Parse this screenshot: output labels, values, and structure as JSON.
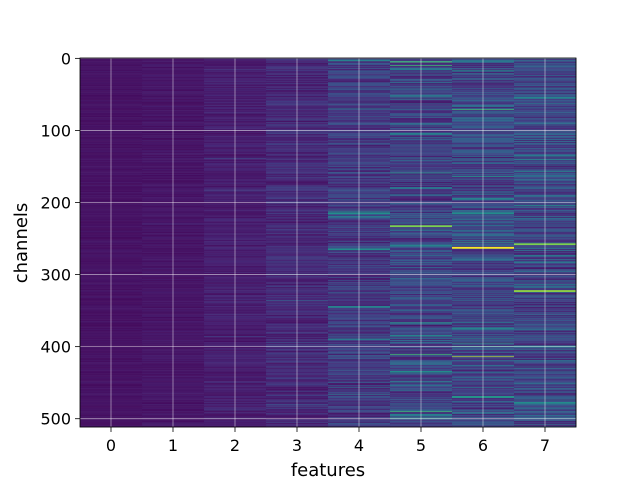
{
  "chart_data": {
    "type": "heatmap",
    "title": "",
    "xlabel": "features",
    "ylabel": "channels",
    "x_ticks": [
      0,
      1,
      2,
      3,
      4,
      5,
      6,
      7
    ],
    "y_ticks": [
      0,
      100,
      200,
      300,
      400,
      500
    ],
    "xlim": [
      -0.5,
      7.5
    ],
    "ylim": [
      511.5,
      -0.5
    ],
    "y_axis_inverted": true,
    "grid": true,
    "colormap": "viridis",
    "columns": 8,
    "rows": 512,
    "column_mean_intensity": [
      0.06,
      0.07,
      0.1,
      0.14,
      0.2,
      0.24,
      0.26,
      0.25
    ],
    "column_variability": [
      0.03,
      0.04,
      0.07,
      0.11,
      0.17,
      0.22,
      0.24,
      0.23
    ],
    "highlights": [
      {
        "feature": 4,
        "channel": 3,
        "value": 0.55
      },
      {
        "feature": 4,
        "channel": 215,
        "value": 0.62
      },
      {
        "feature": 4,
        "channel": 220,
        "value": 0.5
      },
      {
        "feature": 4,
        "channel": 265,
        "value": 0.6
      },
      {
        "feature": 4,
        "channel": 345,
        "value": 0.55
      },
      {
        "feature": 4,
        "channel": 390,
        "value": 0.5
      },
      {
        "feature": 5,
        "channel": 15,
        "value": 0.5
      },
      {
        "feature": 5,
        "channel": 105,
        "value": 0.55
      },
      {
        "feature": 5,
        "channel": 180,
        "value": 0.5
      },
      {
        "feature": 5,
        "channel": 233,
        "value": 0.85
      },
      {
        "feature": 5,
        "channel": 260,
        "value": 0.55
      },
      {
        "feature": 5,
        "channel": 385,
        "value": 0.55
      },
      {
        "feature": 5,
        "channel": 435,
        "value": 0.6
      },
      {
        "feature": 5,
        "channel": 495,
        "value": 0.55
      },
      {
        "feature": 6,
        "channel": 4,
        "value": 0.5
      },
      {
        "feature": 6,
        "channel": 195,
        "value": 0.55
      },
      {
        "feature": 6,
        "channel": 215,
        "value": 0.6
      },
      {
        "feature": 6,
        "channel": 263,
        "value": 1.0
      },
      {
        "feature": 6,
        "channel": 375,
        "value": 0.55
      },
      {
        "feature": 6,
        "channel": 470,
        "value": 0.65
      },
      {
        "feature": 7,
        "channel": 55,
        "value": 0.55
      },
      {
        "feature": 7,
        "channel": 135,
        "value": 0.5
      },
      {
        "feature": 7,
        "channel": 258,
        "value": 0.85
      },
      {
        "feature": 7,
        "channel": 323,
        "value": 0.88
      },
      {
        "feature": 7,
        "channel": 400,
        "value": 0.55
      },
      {
        "feature": 7,
        "channel": 478,
        "value": 0.6
      }
    ]
  }
}
